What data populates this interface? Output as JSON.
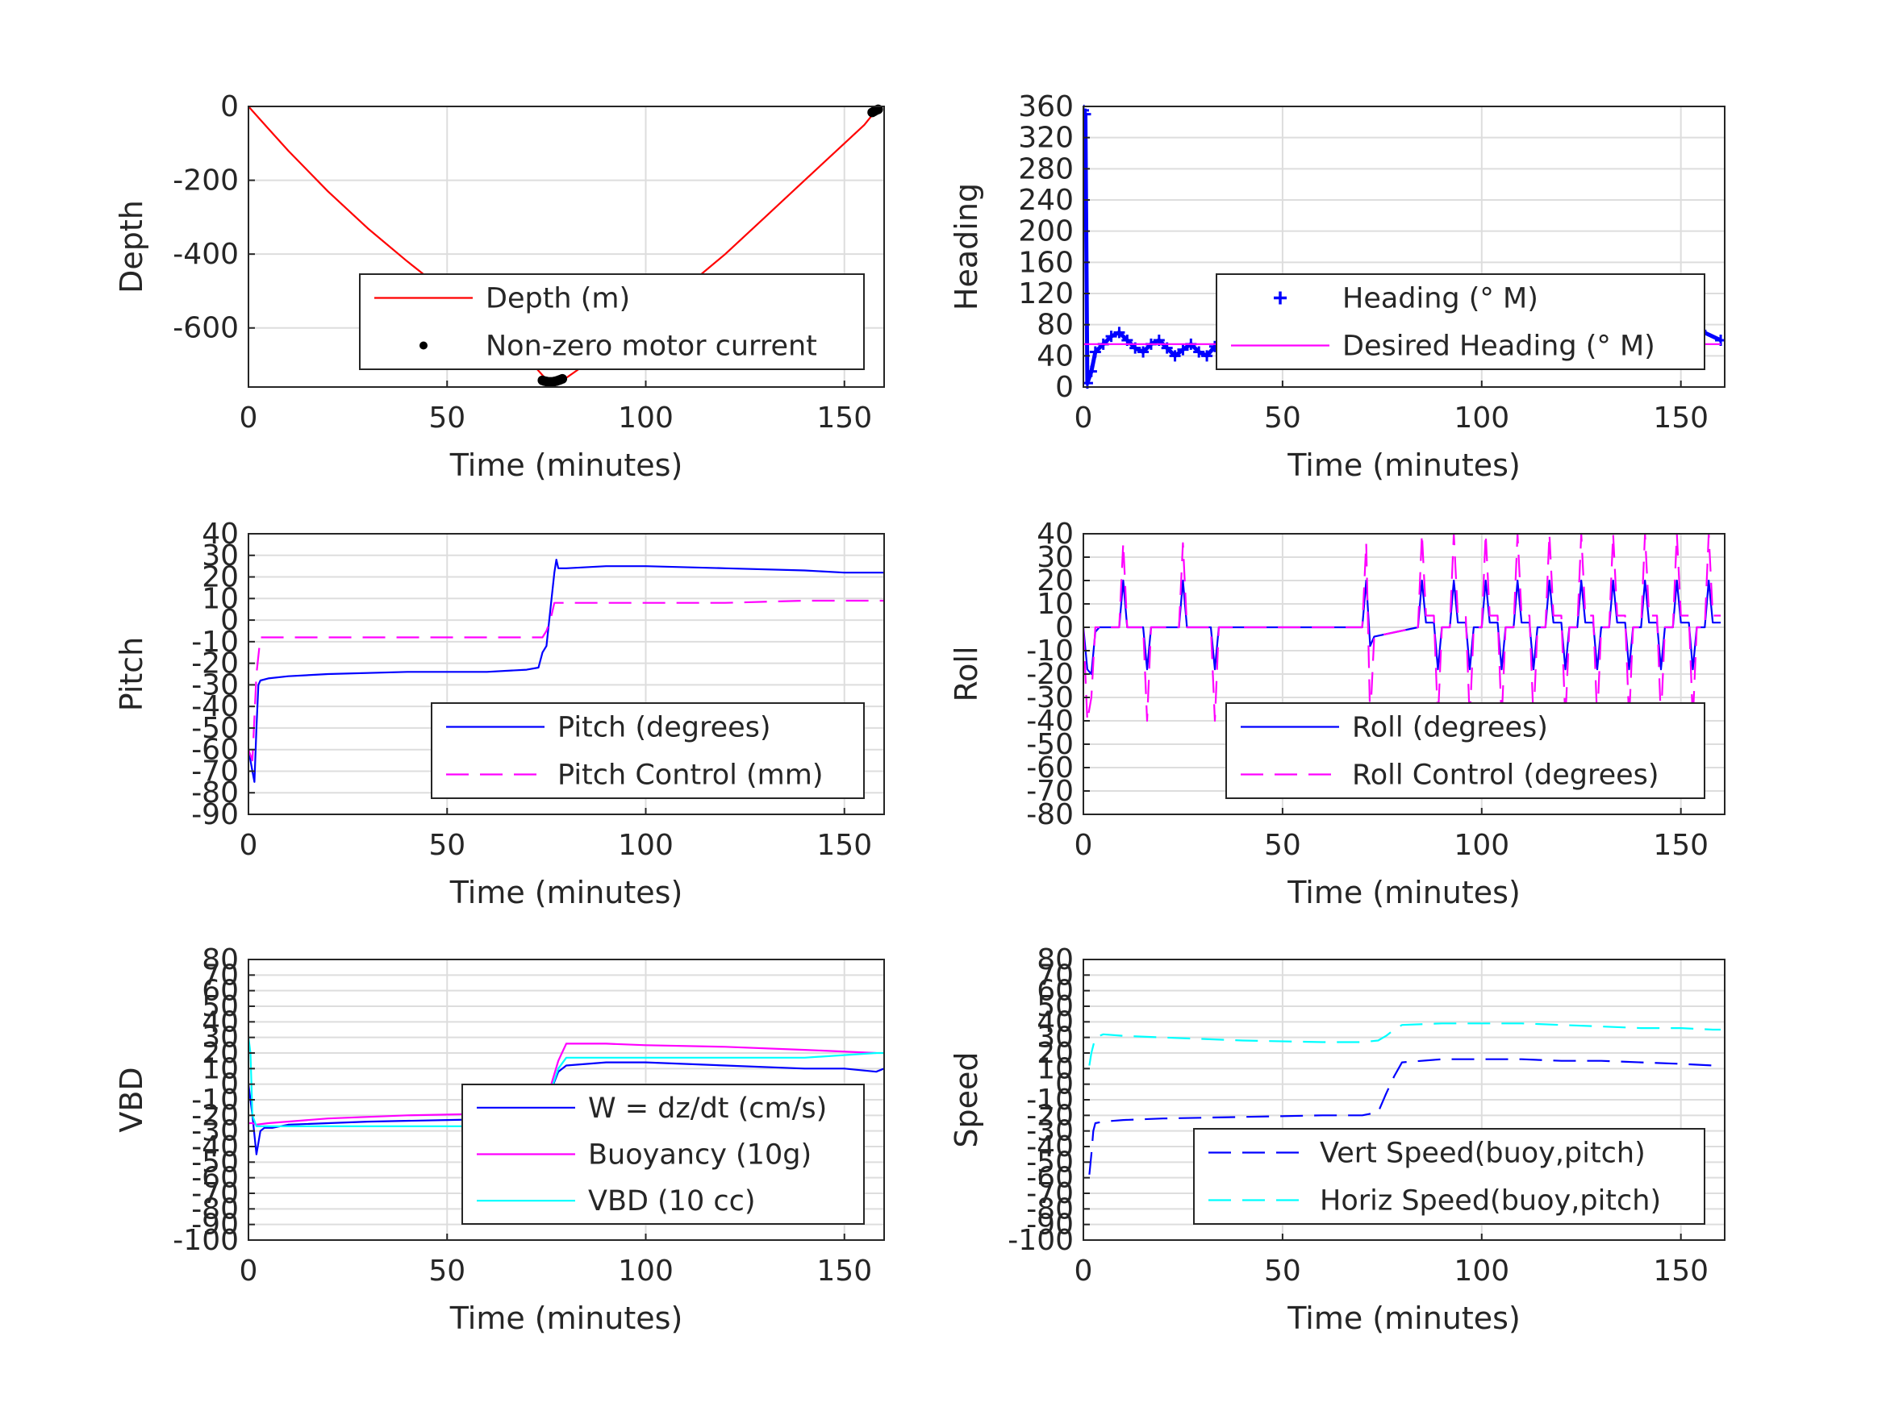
{
  "chart_data": [
    {
      "id": "depth",
      "type": "line",
      "xlabel": "Time (minutes)",
      "ylabel": "Depth",
      "xlim": [
        0,
        160
      ],
      "ylim": [
        -760,
        0
      ],
      "xticks": [
        0,
        50,
        100,
        150
      ],
      "yticks": [
        0,
        -200,
        -400,
        -600
      ],
      "grid": true,
      "legend_position": "lower-right",
      "series": [
        {
          "name": "Depth (m)",
          "color": "#ff0000",
          "style": "solid",
          "x": [
            0,
            1,
            5,
            10,
            20,
            30,
            40,
            50,
            60,
            70,
            75,
            77,
            80,
            90,
            100,
            110,
            120,
            130,
            140,
            150,
            155,
            158
          ],
          "y": [
            0,
            -12,
            -60,
            -120,
            -230,
            -330,
            -420,
            -505,
            -590,
            -680,
            -740,
            -745,
            -735,
            -660,
            -580,
            -490,
            -400,
            -300,
            -200,
            -100,
            -50,
            -10
          ]
        },
        {
          "name": "Non-zero motor current",
          "color": "#000000",
          "style": "dots",
          "x": [
            74,
            74.5,
            75,
            75.5,
            76,
            76.5,
            77,
            77.5,
            78,
            78.5,
            79,
            157,
            157.5,
            158,
            158.5
          ],
          "y": [
            -742,
            -744,
            -745,
            -746,
            -746,
            -746,
            -745,
            -744,
            -742,
            -740,
            -738,
            -16,
            -13,
            -10,
            -8
          ]
        }
      ]
    },
    {
      "id": "heading",
      "type": "scatter",
      "xlabel": "Time (minutes)",
      "ylabel": "Heading",
      "xlim": [
        0,
        161
      ],
      "ylim": [
        0,
        360
      ],
      "xticks": [
        0,
        50,
        100,
        150
      ],
      "yticks": [
        0,
        40,
        80,
        120,
        160,
        200,
        240,
        280,
        320,
        360
      ],
      "grid": true,
      "legend_position": "center-right",
      "series": [
        {
          "name": "Heading (° M)",
          "color": "#0000ff",
          "style": "plus",
          "x": [
            0,
            0.5,
            1,
            2,
            3,
            5,
            7,
            9,
            11,
            13,
            15,
            17,
            19,
            21,
            23,
            25,
            27,
            29,
            31,
            33,
            35,
            40,
            45,
            50,
            55,
            60,
            65,
            70,
            75,
            80,
            85,
            90,
            95,
            100,
            105,
            110,
            115,
            120,
            125,
            130,
            135,
            140,
            145,
            150,
            155,
            160
          ],
          "y": [
            355,
            350,
            5,
            20,
            45,
            55,
            65,
            70,
            60,
            50,
            45,
            55,
            60,
            50,
            40,
            48,
            55,
            45,
            40,
            52,
            58,
            60,
            62,
            60,
            58,
            62,
            60,
            55,
            58,
            60,
            62,
            58,
            65,
            50,
            68,
            45,
            70,
            50,
            72,
            40,
            78,
            45,
            70,
            40,
            72,
            60
          ]
        },
        {
          "name": "Desired Heading (° M)",
          "color": "#ff00ff",
          "style": "solid",
          "x": [
            0,
            160
          ],
          "y": [
            55,
            55
          ]
        }
      ]
    },
    {
      "id": "pitch",
      "type": "line",
      "xlabel": "Time (minutes)",
      "ylabel": "Pitch",
      "xlim": [
        0,
        160
      ],
      "ylim": [
        -90,
        40
      ],
      "xticks": [
        0,
        50,
        100,
        150
      ],
      "yticks": [
        40,
        30,
        20,
        10,
        0,
        -10,
        -20,
        -30,
        -40,
        -50,
        -60,
        -70,
        -80,
        -90
      ],
      "grid": true,
      "legend_position": "lower-right",
      "series": [
        {
          "name": "Pitch (degrees)",
          "color": "#0000ff",
          "style": "solid",
          "x": [
            0,
            1,
            1.5,
            2,
            2.5,
            3,
            5,
            10,
            20,
            40,
            60,
            70,
            73,
            74,
            75,
            76,
            77,
            77.5,
            78,
            80,
            90,
            100,
            120,
            140,
            150,
            160
          ],
          "y": [
            -60,
            -70,
            -75,
            -50,
            -30,
            -28,
            -27,
            -26,
            -25,
            -24,
            -24,
            -23,
            -22,
            -15,
            -12,
            5,
            22,
            28,
            24,
            24,
            25,
            25,
            24,
            23,
            22,
            22
          ]
        },
        {
          "name": "Pitch Control (mm)",
          "color": "#ff00ff",
          "style": "dashed",
          "x": [
            0,
            1,
            2,
            3,
            5,
            50,
            74,
            75,
            76,
            77,
            80,
            100,
            120,
            140,
            160
          ],
          "y": [
            -60,
            -65,
            -25,
            -8,
            -8,
            -8,
            -8,
            -5,
            0,
            8,
            8,
            8,
            8,
            9,
            9
          ]
        }
      ]
    },
    {
      "id": "roll",
      "type": "line",
      "xlabel": "Time (minutes)",
      "ylabel": "Roll",
      "xlim": [
        0,
        161
      ],
      "ylim": [
        -80,
        40
      ],
      "xticks": [
        0,
        50,
        100,
        150
      ],
      "yticks": [
        40,
        30,
        20,
        10,
        0,
        -10,
        -20,
        -30,
        -40,
        -50,
        -60,
        -70,
        -80
      ],
      "grid": true,
      "legend_position": "lower-right",
      "series": [
        {
          "name": "Roll (degrees)",
          "color": "#0000ff",
          "style": "solid",
          "x": [
            0,
            1,
            2,
            3,
            4,
            5,
            9,
            10,
            11,
            15,
            16,
            17,
            24,
            25,
            26,
            32,
            33,
            34,
            70,
            71,
            72,
            73,
            84,
            85,
            86,
            88,
            89,
            90,
            92,
            93,
            94,
            96,
            97,
            98,
            100,
            101,
            102,
            104,
            105,
            106,
            108,
            109,
            110,
            112,
            113,
            114,
            116,
            117,
            118,
            120,
            121,
            122,
            124,
            125,
            126,
            128,
            129,
            130,
            132,
            133,
            134,
            136,
            137,
            138,
            140,
            141,
            142,
            144,
            145,
            146,
            148,
            149,
            150,
            152,
            153,
            154,
            156,
            157,
            158,
            160
          ],
          "y": [
            0,
            -18,
            -20,
            -2,
            0,
            0,
            0,
            20,
            0,
            0,
            -18,
            0,
            0,
            20,
            0,
            0,
            -18,
            0,
            0,
            20,
            -8,
            -4,
            0,
            20,
            2,
            2,
            -18,
            0,
            0,
            20,
            2,
            2,
            -18,
            0,
            0,
            20,
            2,
            2,
            -18,
            0,
            0,
            20,
            2,
            2,
            -18,
            0,
            0,
            20,
            2,
            2,
            -18,
            0,
            0,
            20,
            2,
            2,
            -18,
            0,
            0,
            20,
            2,
            2,
            -18,
            0,
            0,
            20,
            2,
            2,
            -18,
            0,
            0,
            20,
            2,
            2,
            -18,
            0,
            0,
            20,
            2,
            2
          ]
        },
        {
          "name": "Roll Control (degrees)",
          "color": "#ff00ff",
          "style": "dashed",
          "x": [
            0,
            1,
            2,
            3,
            4,
            5,
            9,
            10,
            11,
            15,
            16,
            17,
            24,
            25,
            26,
            32,
            33,
            34,
            70,
            71,
            72,
            73,
            84,
            85,
            86,
            88,
            89,
            90,
            92,
            93,
            94,
            96,
            97,
            98,
            100,
            101,
            102,
            104,
            105,
            106,
            108,
            109,
            110,
            112,
            113,
            114,
            116,
            117,
            118,
            120,
            121,
            122,
            124,
            125,
            126,
            128,
            129,
            130,
            132,
            133,
            134,
            136,
            137,
            138,
            140,
            141,
            142,
            144,
            145,
            146,
            148,
            149,
            150,
            152,
            153,
            154,
            156,
            157,
            158,
            160
          ],
          "y": [
            0,
            -40,
            -30,
            0,
            0,
            0,
            0,
            36,
            0,
            0,
            -40,
            0,
            0,
            36,
            0,
            0,
            -40,
            0,
            0,
            36,
            -40,
            -4,
            0,
            40,
            5,
            5,
            -40,
            0,
            0,
            40,
            5,
            5,
            -40,
            0,
            0,
            40,
            5,
            5,
            -40,
            0,
            0,
            40,
            5,
            5,
            -40,
            0,
            0,
            40,
            5,
            5,
            -40,
            0,
            0,
            40,
            5,
            5,
            -40,
            0,
            0,
            40,
            5,
            5,
            -40,
            0,
            0,
            40,
            5,
            5,
            -40,
            0,
            0,
            40,
            5,
            5,
            -40,
            0,
            0,
            40,
            5,
            5
          ]
        }
      ]
    },
    {
      "id": "vbd",
      "type": "line",
      "xlabel": "Time (minutes)",
      "ylabel": "VBD",
      "xlim": [
        0,
        160
      ],
      "ylim": [
        -100,
        80
      ],
      "xticks": [
        0,
        50,
        100,
        150
      ],
      "yticks": [
        80,
        70,
        60,
        50,
        40,
        30,
        20,
        10,
        0,
        -10,
        -20,
        -30,
        -40,
        -50,
        -60,
        -70,
        -80,
        -90,
        -100
      ],
      "grid": true,
      "legend_position": "lower-right",
      "series": [
        {
          "name": "W = dz/dt (cm/s)",
          "color": "#0000ff",
          "style": "solid",
          "x": [
            0,
            1,
            2,
            3,
            4,
            6,
            10,
            30,
            50,
            70,
            74,
            76,
            78,
            80,
            90,
            100,
            120,
            140,
            150,
            158,
            160
          ],
          "y": [
            0,
            -20,
            -45,
            -30,
            -28,
            -28,
            -26,
            -24,
            -23,
            -22,
            -20,
            -5,
            8,
            12,
            14,
            14,
            12,
            10,
            10,
            8,
            10
          ]
        },
        {
          "name": "Buoyancy (10g)",
          "color": "#ff00ff",
          "style": "solid",
          "x": [
            0,
            1,
            2,
            5,
            20,
            40,
            60,
            74,
            76,
            78,
            80,
            90,
            100,
            120,
            140,
            158
          ],
          "y": [
            -25,
            -25,
            -26,
            -25,
            -22,
            -20,
            -19,
            -18,
            -2,
            15,
            26,
            26,
            25,
            24,
            22,
            20
          ]
        },
        {
          "name": "VBD (10 cc)",
          "color": "#00ffff",
          "style": "solid",
          "x": [
            0,
            0.5,
            1,
            2,
            5,
            20,
            40,
            60,
            72,
            74,
            76,
            78,
            80,
            90,
            100,
            120,
            140,
            158,
            160
          ],
          "y": [
            30,
            20,
            -20,
            -27,
            -27,
            -27,
            -27,
            -27,
            -27,
            -22,
            -5,
            10,
            17,
            17,
            17,
            17,
            17,
            20,
            20
          ]
        }
      ]
    },
    {
      "id": "speed",
      "type": "line",
      "xlabel": "Time (minutes)",
      "ylabel": "Speed",
      "xlim": [
        0,
        161
      ],
      "ylim": [
        -100,
        80
      ],
      "xticks": [
        0,
        50,
        100,
        150
      ],
      "yticks": [
        80,
        70,
        60,
        50,
        40,
        30,
        20,
        10,
        0,
        -10,
        -20,
        -30,
        -40,
        -50,
        -60,
        -70,
        -80,
        -90,
        -100
      ],
      "grid": true,
      "legend_position": "lower-right",
      "series": [
        {
          "name": "Vert Speed(buoy,pitch)",
          "color": "#0000ff",
          "style": "dashed",
          "x": [
            1.5,
            2,
            2.5,
            3,
            5,
            10,
            20,
            40,
            60,
            70,
            74,
            76,
            78,
            80,
            90,
            100,
            110,
            120,
            130,
            140,
            150,
            158,
            160
          ],
          "y": [
            -58,
            -45,
            -30,
            -25,
            -24,
            -23,
            -22,
            -21,
            -20,
            -20,
            -18,
            -6,
            5,
            14,
            16,
            16,
            16,
            15,
            15,
            14,
            13,
            12,
            13
          ]
        },
        {
          "name": "Horiz Speed(buoy,pitch)",
          "color": "#00ffff",
          "style": "dashed",
          "x": [
            1.5,
            2,
            3,
            5,
            10,
            20,
            40,
            60,
            70,
            74,
            76,
            78,
            80,
            90,
            100,
            110,
            120,
            130,
            140,
            150,
            158,
            160
          ],
          "y": [
            12,
            20,
            30,
            32,
            31,
            30,
            28,
            27,
            27,
            28,
            31,
            35,
            38,
            39,
            39,
            39,
            38,
            37,
            36,
            36,
            35,
            35
          ]
        }
      ]
    }
  ]
}
